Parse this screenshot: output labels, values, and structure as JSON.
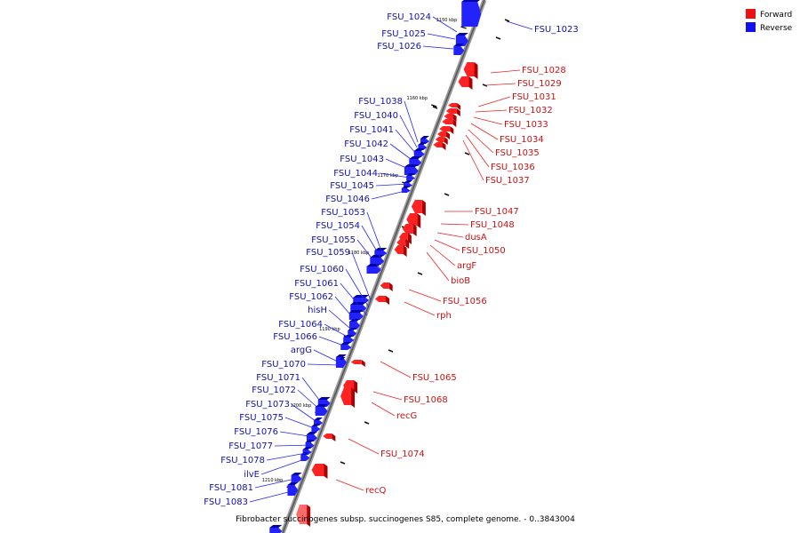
{
  "caption": "Fibrobacter succinogenes subsp. succinogenes S85, complete genome. - 0..3843004",
  "legend": [
    {
      "label": "Forward",
      "color": "#ee1111"
    },
    {
      "label": "Reverse",
      "color": "#1111ee"
    }
  ],
  "scale_ticks": [
    "1150 kbp",
    "1160 kbp",
    "1170 kbp",
    "1180 kbp",
    "1190 kbp",
    "1200 kbp",
    "1210 kbp"
  ],
  "reverse_genes": [
    "FSU_1024",
    "FSU_1025",
    "FSU_1026",
    "FSU_1038",
    "FSU_1040",
    "FSU_1041",
    "FSU_1042",
    "FSU_1043",
    "FSU_1044",
    "FSU_1045",
    "FSU_1046",
    "FSU_1053",
    "FSU_1054",
    "FSU_1055",
    "FSU_1059",
    "FSU_1060",
    "FSU_1061",
    "FSU_1062",
    "hisH",
    "FSU_1064",
    "FSU_1066",
    "argG",
    "FSU_1070",
    "FSU_1071",
    "FSU_1072",
    "FSU_1073",
    "FSU_1075",
    "FSU_1076",
    "FSU_1077",
    "FSU_1078",
    "ilvE",
    "FSU_1081",
    "FSU_1083"
  ],
  "forward_genes": [
    "FSU_1023",
    "FSU_1028",
    "FSU_1029",
    "FSU_1031",
    "FSU_1032",
    "FSU_1033",
    "FSU_1034",
    "FSU_1035",
    "FSU_1036",
    "FSU_1037",
    "FSU_1047",
    "FSU_1048",
    "dusA",
    "FSU_1050",
    "argF",
    "bioB",
    "FSU_1056",
    "rph",
    "FSU_1065",
    "FSU_1068",
    "recG",
    "FSU_1074",
    "recQ"
  ]
}
